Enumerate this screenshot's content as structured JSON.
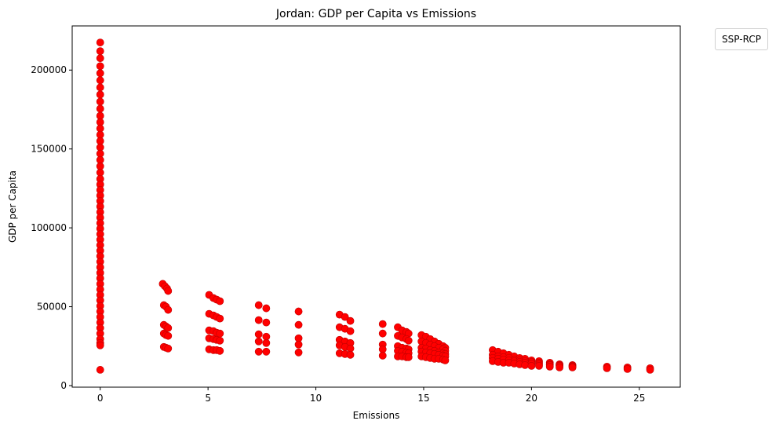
{
  "chart_data": {
    "type": "scatter",
    "title": "Jordan: GDP per Capita vs Emissions",
    "xlabel": "Emissions",
    "ylabel": "GDP per Capita",
    "xlim": [
      -1.3,
      26.9
    ],
    "ylim": [
      -1000,
      228000
    ],
    "x_ticks": [
      0,
      5,
      10,
      15,
      20,
      25
    ],
    "y_ticks": [
      0,
      50000,
      100000,
      150000,
      200000
    ],
    "grid": false,
    "legend": {
      "title": "SSP-RCP",
      "placement": "outside-top-right",
      "entries": []
    },
    "marker_color": "#ff0000",
    "marker_edge_color": "#c00000",
    "series": [
      {
        "points": [
          [
            0,
            217500
          ],
          [
            0,
            212000
          ],
          [
            0,
            207500
          ],
          [
            0,
            202500
          ],
          [
            0,
            198000
          ],
          [
            0,
            193500
          ],
          [
            0,
            189000
          ],
          [
            0,
            184500
          ],
          [
            0,
            180000
          ],
          [
            0,
            175500
          ],
          [
            0,
            171000
          ],
          [
            0,
            167000
          ],
          [
            0,
            163000
          ],
          [
            0,
            159000
          ],
          [
            0,
            155000
          ],
          [
            0,
            151000
          ],
          [
            0,
            147000
          ],
          [
            0,
            143000
          ],
          [
            0,
            139000
          ],
          [
            0,
            135000
          ],
          [
            0,
            131000
          ],
          [
            0,
            127500
          ],
          [
            0,
            124000
          ],
          [
            0,
            120500
          ],
          [
            0,
            117000
          ],
          [
            0,
            113500
          ],
          [
            0,
            110000
          ],
          [
            0,
            106500
          ],
          [
            0,
            103000
          ],
          [
            0,
            99500
          ],
          [
            0,
            96000
          ],
          [
            0,
            92500
          ],
          [
            0,
            89000
          ],
          [
            0,
            85500
          ],
          [
            0,
            82000
          ],
          [
            0,
            78500
          ],
          [
            0,
            75000
          ],
          [
            0,
            71500
          ],
          [
            0,
            68000
          ],
          [
            0,
            64500
          ],
          [
            0,
            61000
          ],
          [
            0,
            57500
          ],
          [
            0,
            54000
          ],
          [
            0,
            50500
          ],
          [
            0,
            47000
          ],
          [
            0,
            43500
          ],
          [
            0,
            40000
          ],
          [
            0,
            36500
          ],
          [
            0,
            33000
          ],
          [
            0,
            29500
          ],
          [
            0,
            27000
          ],
          [
            0,
            25500
          ],
          [
            0,
            10000
          ],
          [
            2.9,
            64500
          ],
          [
            3.0,
            63000
          ],
          [
            3.1,
            61500
          ],
          [
            3.15,
            60000
          ],
          [
            2.95,
            51000
          ],
          [
            3.05,
            50000
          ],
          [
            3.15,
            48000
          ],
          [
            2.95,
            38500
          ],
          [
            3.05,
            37500
          ],
          [
            3.15,
            36500
          ],
          [
            2.95,
            33000
          ],
          [
            3.05,
            32000
          ],
          [
            3.15,
            31500
          ],
          [
            2.95,
            24500
          ],
          [
            3.05,
            24000
          ],
          [
            3.15,
            23500
          ],
          [
            5.05,
            57500
          ],
          [
            5.25,
            55500
          ],
          [
            5.4,
            54500
          ],
          [
            5.55,
            53500
          ],
          [
            5.05,
            45500
          ],
          [
            5.25,
            44500
          ],
          [
            5.4,
            43500
          ],
          [
            5.55,
            42500
          ],
          [
            5.05,
            35000
          ],
          [
            5.25,
            34500
          ],
          [
            5.4,
            33500
          ],
          [
            5.55,
            33000
          ],
          [
            5.05,
            30000
          ],
          [
            5.25,
            29500
          ],
          [
            5.4,
            29000
          ],
          [
            5.55,
            28500
          ],
          [
            5.05,
            23000
          ],
          [
            5.25,
            22500
          ],
          [
            5.4,
            22500
          ],
          [
            5.55,
            22000
          ],
          [
            7.35,
            51000
          ],
          [
            7.7,
            49000
          ],
          [
            7.35,
            41500
          ],
          [
            7.7,
            40000
          ],
          [
            7.35,
            32500
          ],
          [
            7.7,
            31000
          ],
          [
            7.35,
            28000
          ],
          [
            7.7,
            27000
          ],
          [
            7.35,
            21500
          ],
          [
            7.7,
            21500
          ],
          [
            9.2,
            47000
          ],
          [
            9.2,
            38500
          ],
          [
            9.2,
            30000
          ],
          [
            9.2,
            26000
          ],
          [
            9.2,
            21000
          ],
          [
            11.1,
            45000
          ],
          [
            11.35,
            43500
          ],
          [
            11.6,
            41000
          ],
          [
            11.1,
            37000
          ],
          [
            11.35,
            36000
          ],
          [
            11.6,
            34500
          ],
          [
            11.1,
            29000
          ],
          [
            11.35,
            28000
          ],
          [
            11.6,
            27000
          ],
          [
            11.1,
            25500
          ],
          [
            11.35,
            24500
          ],
          [
            11.6,
            23500
          ],
          [
            11.1,
            20500
          ],
          [
            11.35,
            20000
          ],
          [
            11.6,
            19500
          ],
          [
            13.1,
            39000
          ],
          [
            13.1,
            33000
          ],
          [
            13.1,
            26000
          ],
          [
            13.1,
            23000
          ],
          [
            13.1,
            19000
          ],
          [
            13.8,
            37000
          ],
          [
            14.0,
            35000
          ],
          [
            14.2,
            34000
          ],
          [
            14.3,
            33000
          ],
          [
            13.8,
            31500
          ],
          [
            14.0,
            30500
          ],
          [
            14.2,
            29500
          ],
          [
            14.3,
            28500
          ],
          [
            13.8,
            25000
          ],
          [
            14.0,
            24000
          ],
          [
            14.2,
            23500
          ],
          [
            14.3,
            23000
          ],
          [
            13.8,
            22000
          ],
          [
            14.0,
            21500
          ],
          [
            14.2,
            21000
          ],
          [
            14.3,
            20500
          ],
          [
            13.8,
            18500
          ],
          [
            14.0,
            18500
          ],
          [
            14.2,
            18000
          ],
          [
            14.3,
            18000
          ],
          [
            14.9,
            32000
          ],
          [
            15.1,
            31000
          ],
          [
            15.3,
            29500
          ],
          [
            15.5,
            28000
          ],
          [
            15.7,
            26500
          ],
          [
            15.9,
            25000
          ],
          [
            16.0,
            24000
          ],
          [
            14.9,
            28000
          ],
          [
            15.1,
            27000
          ],
          [
            15.3,
            26000
          ],
          [
            15.5,
            25000
          ],
          [
            15.7,
            24000
          ],
          [
            15.9,
            23000
          ],
          [
            16.0,
            22000
          ],
          [
            14.9,
            24000
          ],
          [
            15.1,
            23500
          ],
          [
            15.3,
            22500
          ],
          [
            15.5,
            22000
          ],
          [
            15.7,
            21000
          ],
          [
            15.9,
            20500
          ],
          [
            16.0,
            20000
          ],
          [
            14.9,
            21500
          ],
          [
            15.1,
            21000
          ],
          [
            15.3,
            20500
          ],
          [
            15.5,
            20000
          ],
          [
            15.7,
            19500
          ],
          [
            15.9,
            19000
          ],
          [
            16.0,
            18500
          ],
          [
            14.9,
            18500
          ],
          [
            15.1,
            18000
          ],
          [
            15.3,
            17500
          ],
          [
            15.5,
            17000
          ],
          [
            15.7,
            17000
          ],
          [
            15.9,
            16500
          ],
          [
            16.0,
            16000
          ],
          [
            18.2,
            22500
          ],
          [
            18.45,
            21500
          ],
          [
            18.7,
            20500
          ],
          [
            18.95,
            19500
          ],
          [
            19.2,
            18500
          ],
          [
            19.45,
            17500
          ],
          [
            19.7,
            17000
          ],
          [
            20.0,
            16000
          ],
          [
            20.35,
            15500
          ],
          [
            20.85,
            14500
          ],
          [
            21.3,
            13500
          ],
          [
            21.9,
            13000
          ],
          [
            18.2,
            19500
          ],
          [
            18.45,
            18500
          ],
          [
            18.7,
            18000
          ],
          [
            18.95,
            17500
          ],
          [
            19.2,
            16500
          ],
          [
            19.45,
            16000
          ],
          [
            19.7,
            15500
          ],
          [
            20.0,
            15000
          ],
          [
            20.35,
            14500
          ],
          [
            20.85,
            13500
          ],
          [
            21.3,
            13000
          ],
          [
            21.9,
            12500
          ],
          [
            18.2,
            17500
          ],
          [
            18.45,
            17000
          ],
          [
            18.7,
            16500
          ],
          [
            18.95,
            16000
          ],
          [
            19.2,
            15500
          ],
          [
            19.45,
            15000
          ],
          [
            19.7,
            14500
          ],
          [
            20.0,
            14000
          ],
          [
            20.35,
            13500
          ],
          [
            20.85,
            13000
          ],
          [
            21.3,
            12500
          ],
          [
            21.9,
            12000
          ],
          [
            18.2,
            15500
          ],
          [
            18.45,
            15000
          ],
          [
            18.7,
            14500
          ],
          [
            18.95,
            14500
          ],
          [
            19.2,
            14000
          ],
          [
            19.45,
            13500
          ],
          [
            19.7,
            13000
          ],
          [
            20.0,
            12500
          ],
          [
            20.35,
            12500
          ],
          [
            20.85,
            12000
          ],
          [
            21.3,
            11500
          ],
          [
            21.9,
            11500
          ],
          [
            23.5,
            12000
          ],
          [
            23.5,
            11000
          ],
          [
            24.45,
            11500
          ],
          [
            24.45,
            10500
          ],
          [
            25.5,
            11000
          ],
          [
            25.5,
            10000
          ]
        ]
      }
    ]
  }
}
